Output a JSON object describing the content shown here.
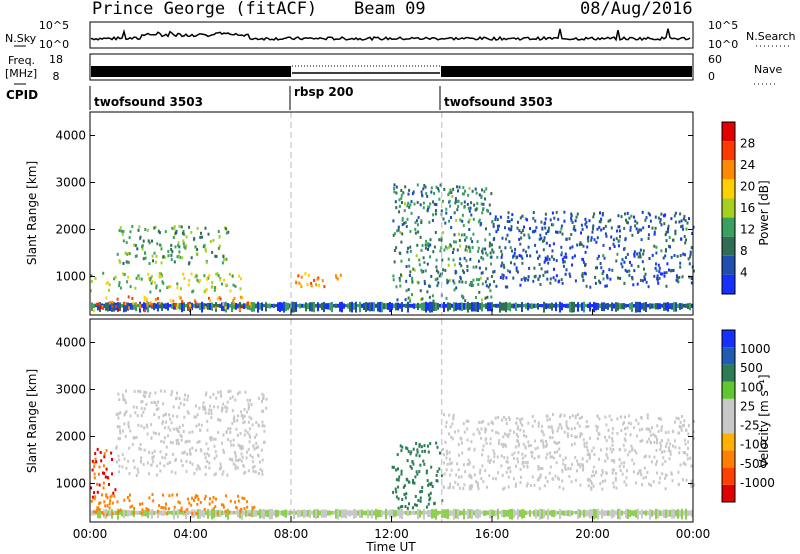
{
  "header": {
    "title": "Prince George (fitACF)",
    "beam": "Beam 09",
    "date": "08/Aug/2016"
  },
  "top_panels": {
    "nsky_label": "N.Sky",
    "nsearch_label": "N.Search",
    "freq_label": "Freq.",
    "freq_unit": "[MHz]",
    "nave_label": "Nave",
    "cpid_label": "CPID",
    "nsky_ticks": [
      "10^5",
      "10^0"
    ],
    "nsearch_ticks": [
      "10^5",
      "10^0"
    ],
    "freq_ticks": [
      "18",
      "8"
    ],
    "nave_ticks": [
      "60",
      "0"
    ],
    "cpid_segments": [
      "twofsound 3503",
      "rbsp 200",
      "twofsound 3503"
    ]
  },
  "colors": {
    "power_scale": [
      "#1530ff",
      "#1e4fb0",
      "#2f6e55",
      "#3aa060",
      "#a6d020",
      "#ffd000",
      "#ff8a00",
      "#ff3a00",
      "#e00000"
    ],
    "velocity_scale": [
      "#1530ff",
      "#1f5cb4",
      "#2c7d55",
      "#5fc830",
      "#c8c8c8",
      "#c8c8c8",
      "#ffb000",
      "#ff8000",
      "#ff4000",
      "#e00000"
    ]
  },
  "chart_data": [
    {
      "type": "heatmap",
      "title": "",
      "ylabel": "Slant Range [km]",
      "xlabel": "",
      "ylim": [
        180,
        4500
      ],
      "xlim": [
        "00:00",
        "24:00"
      ],
      "y_ticks": [
        "1000",
        "2000",
        "3000",
        "4000"
      ],
      "colorbar_label": "Power [dB]",
      "colorbar_ticks": [
        "4",
        "8",
        "12",
        "16",
        "20",
        "24",
        "28"
      ],
      "features": [
        {
          "start": "00:00",
          "end": "06:30",
          "range_start": 300,
          "range_end": 600,
          "value": 24
        },
        {
          "start": "00:00",
          "end": "06:00",
          "range_start": 700,
          "range_end": 1100,
          "value": 16
        },
        {
          "start": "01:00",
          "end": "05:30",
          "range_start": 1300,
          "range_end": 2100,
          "value": 12
        },
        {
          "start": "08:00",
          "end": "10:00",
          "range_start": 800,
          "range_end": 1100,
          "value": 22
        },
        {
          "start": "12:00",
          "end": "16:00",
          "range_start": 500,
          "range_end": 3000,
          "value": 10
        },
        {
          "start": "16:00",
          "end": "24:00",
          "range_start": 800,
          "range_end": 2400,
          "value": 6
        }
      ]
    },
    {
      "type": "heatmap",
      "title": "",
      "ylabel": "Slant Range [km]",
      "xlabel": "Time UT",
      "ylim": [
        180,
        4500
      ],
      "xlim": [
        "00:00",
        "24:00"
      ],
      "x_ticks": [
        "00:00",
        "04:00",
        "08:00",
        "12:00",
        "16:00",
        "20:00",
        "00:00"
      ],
      "y_ticks": [
        "1000",
        "2000",
        "3000",
        "4000"
      ],
      "colorbar_label": "Velocity [m s⁻¹]",
      "colorbar_ticks": [
        "1000",
        "500",
        "100",
        "25",
        "-25",
        "-100",
        "-500",
        "-1000"
      ],
      "features": [
        {
          "start": "00:00",
          "end": "01:00",
          "range_start": 700,
          "range_end": 1800,
          "value": -500
        },
        {
          "start": "00:00",
          "end": "06:30",
          "range_start": 350,
          "range_end": 800,
          "value": -150
        },
        {
          "start": "01:00",
          "end": "07:00",
          "range_start": 1200,
          "range_end": 3000,
          "value": 0
        },
        {
          "start": "12:00",
          "end": "14:00",
          "range_start": 500,
          "range_end": 1900,
          "value": 150
        },
        {
          "start": "14:00",
          "end": "24:00",
          "range_start": 900,
          "range_end": 2500,
          "value": 0
        }
      ]
    }
  ]
}
